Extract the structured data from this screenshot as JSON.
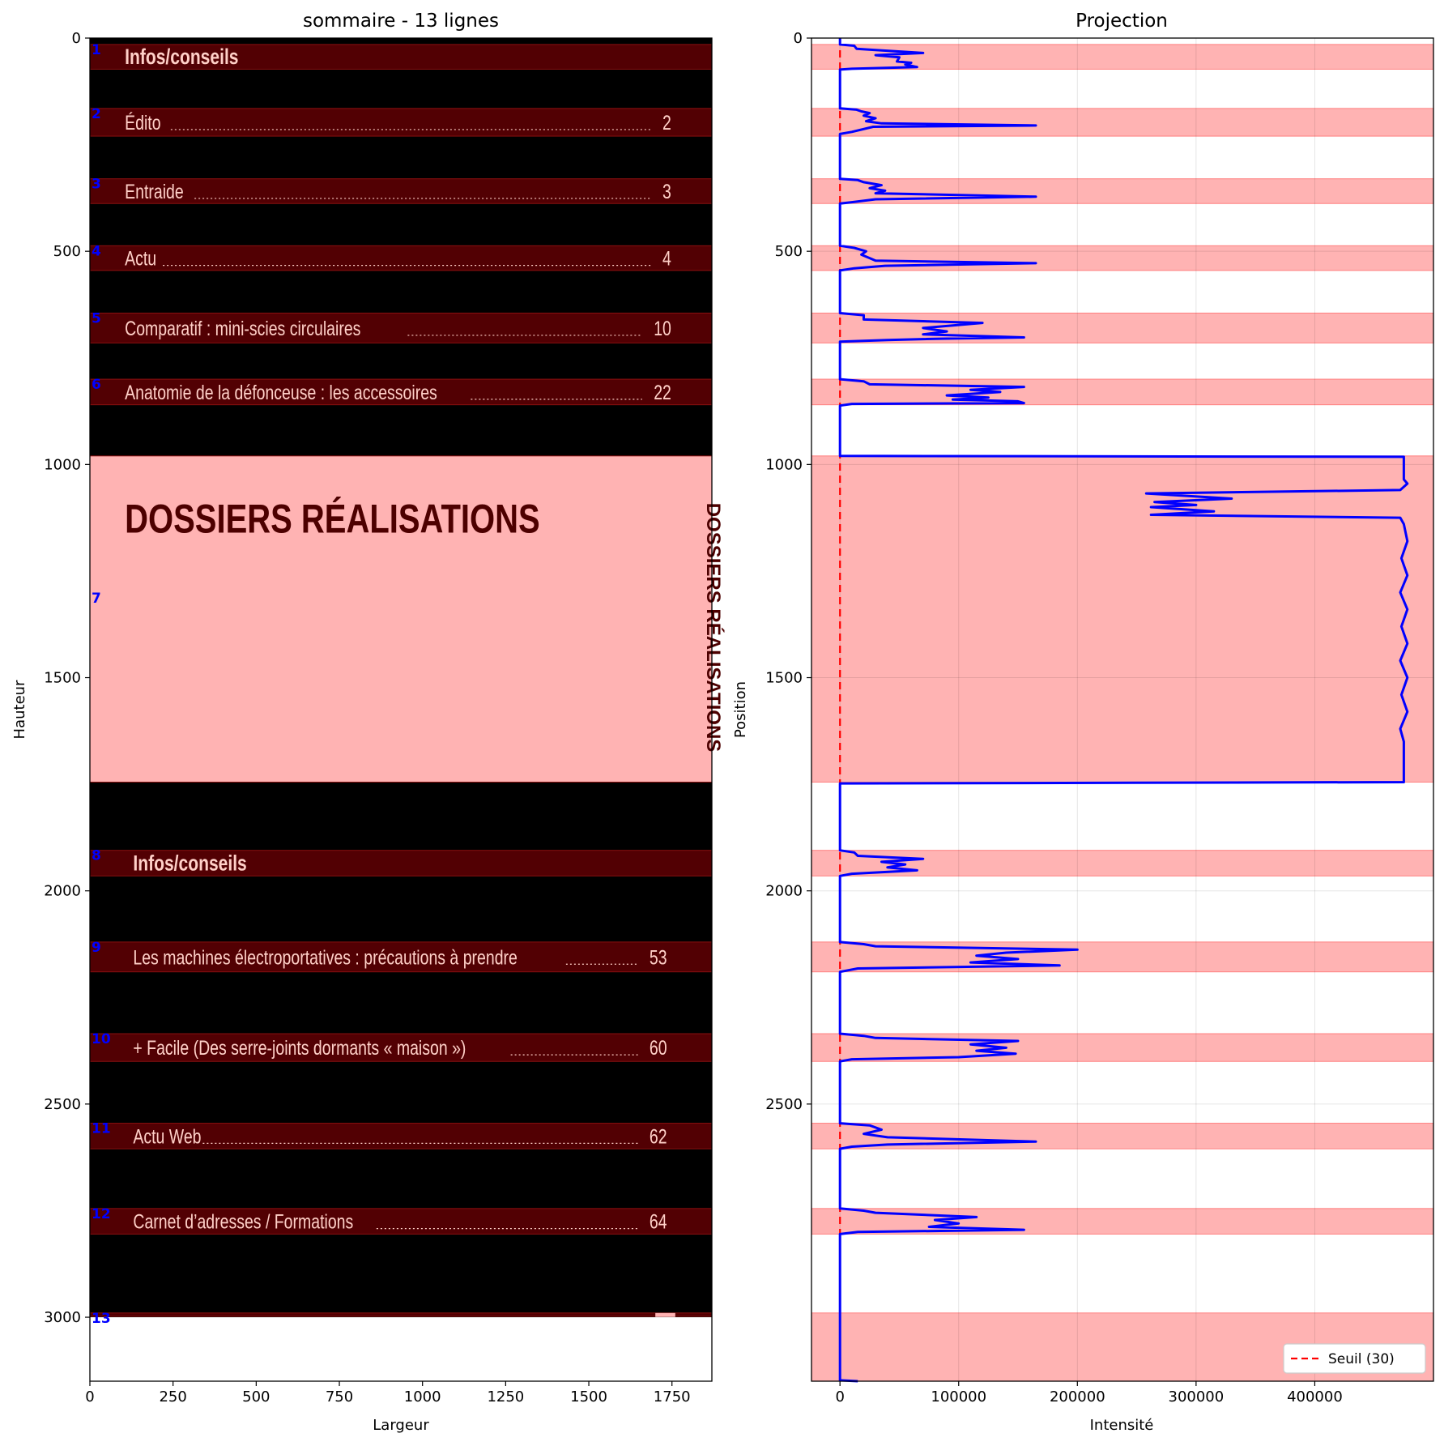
{
  "chart_data": [
    {
      "type": "image",
      "title": "sommaire - 13 lignes",
      "xlabel": "Largeur",
      "ylabel": "Hauteur",
      "xlim": [
        0,
        1870
      ],
      "ylim": [
        3150,
        0
      ],
      "xticks": [
        0,
        250,
        500,
        750,
        1000,
        1250,
        1500,
        1750
      ],
      "yticks": [
        0,
        500,
        1000,
        1500,
        2000,
        2500,
        3000
      ],
      "image_height": 3000,
      "lines": [
        {
          "id": "1",
          "y0": 15,
          "y1": 73
        },
        {
          "id": "2",
          "y0": 165,
          "y1": 230
        },
        {
          "id": "3",
          "y0": 330,
          "y1": 388
        },
        {
          "id": "4",
          "y0": 487,
          "y1": 545
        },
        {
          "id": "5",
          "y0": 645,
          "y1": 715
        },
        {
          "id": "6",
          "y0": 800,
          "y1": 860
        },
        {
          "id": "7",
          "y0": 980,
          "y1": 1745
        },
        {
          "id": "8",
          "y0": 1905,
          "y1": 1965
        },
        {
          "id": "9",
          "y0": 2120,
          "y1": 2190
        },
        {
          "id": "10",
          "y0": 2335,
          "y1": 2400
        },
        {
          "id": "11",
          "y0": 2545,
          "y1": 2605
        },
        {
          "id": "12",
          "y0": 2745,
          "y1": 2805
        },
        {
          "id": "13",
          "y0": 2990,
          "y1": 2998
        }
      ],
      "toc": [
        {
          "text": "Infos/conseils",
          "page": "",
          "header": true,
          "indent": 0
        },
        {
          "text": "Édito",
          "page": "2",
          "indent": 0
        },
        {
          "text": "Entraide",
          "page": "3",
          "indent": 0
        },
        {
          "text": "Actu",
          "page": "4",
          "indent": 0
        },
        {
          "text": "Comparatif : mini-scies circulaires",
          "page": "10",
          "indent": 0
        },
        {
          "text": "Anatomie de la défonceuse : les accessoires",
          "page": "22",
          "indent": 0
        },
        {
          "text": "Infos/conseils",
          "page": "",
          "header": true,
          "indent": 1
        },
        {
          "text": "Les machines électroportatives : précautions à prendre",
          "page": "53",
          "indent": 1
        },
        {
          "text": "+ Facile (Des serre-joints dormants « maison »)",
          "page": "60",
          "indent": 1
        },
        {
          "text": "Actu Web",
          "page": "62",
          "indent": 1
        },
        {
          "text": "Carnet d’adresses / Formations",
          "page": "64",
          "indent": 1
        }
      ],
      "banner_title": "DOSSIERS RÉALISATIONS",
      "banner_side_title": "DOSSIERS RÉALISATIONS"
    },
    {
      "type": "line",
      "title": "Projection",
      "xlabel": "Intensité",
      "ylabel": "Position",
      "xlim": [
        -24000,
        500000
      ],
      "ylim": [
        3150,
        0
      ],
      "xticks": [
        0,
        100000,
        200000,
        300000,
        400000
      ],
      "yticks": [
        0,
        500,
        1000,
        1500,
        2000,
        2500
      ],
      "grid": true,
      "threshold": 30,
      "legend": {
        "label": "Seuil (30)",
        "position": "lower-right"
      },
      "regions": [
        [
          15,
          73
        ],
        [
          165,
          230
        ],
        [
          330,
          388
        ],
        [
          487,
          545
        ],
        [
          645,
          715
        ],
        [
          800,
          860
        ],
        [
          980,
          1745
        ],
        [
          1905,
          1965
        ],
        [
          2120,
          2190
        ],
        [
          2335,
          2400
        ],
        [
          2545,
          2605
        ],
        [
          2745,
          2805
        ],
        [
          2990,
          3150
        ]
      ],
      "series": [
        {
          "color": "#0000ff",
          "points": [
            [
              0,
              0
            ],
            [
              0,
              15
            ],
            [
              12000,
              18
            ],
            [
              14000,
              25
            ],
            [
              30000,
              28
            ],
            [
              70000,
              35
            ],
            [
              30000,
              40
            ],
            [
              50000,
              45
            ],
            [
              48000,
              55
            ],
            [
              60000,
              58
            ],
            [
              55000,
              62
            ],
            [
              65000,
              68
            ],
            [
              10000,
              72
            ],
            [
              0,
              74
            ],
            [
              0,
              160
            ],
            [
              0,
              165
            ],
            [
              14000,
              168
            ],
            [
              18000,
              172
            ],
            [
              25000,
              176
            ],
            [
              20000,
              182
            ],
            [
              30000,
              188
            ],
            [
              22000,
              195
            ],
            [
              35000,
              200
            ],
            [
              165000,
              205
            ],
            [
              28000,
              208
            ],
            [
              10000,
              220
            ],
            [
              0,
              225
            ],
            [
              0,
              310
            ],
            [
              0,
              330
            ],
            [
              15000,
              333
            ],
            [
              20000,
              338
            ],
            [
              35000,
              345
            ],
            [
              25000,
              352
            ],
            [
              38000,
              358
            ],
            [
              30000,
              364
            ],
            [
              165000,
              372
            ],
            [
              30000,
              378
            ],
            [
              10000,
              385
            ],
            [
              0,
              388
            ],
            [
              0,
              480
            ],
            [
              0,
              487
            ],
            [
              12000,
              492
            ],
            [
              22000,
              500
            ],
            [
              18000,
              508
            ],
            [
              25000,
              516
            ],
            [
              30000,
              522
            ],
            [
              165000,
              528
            ],
            [
              38000,
              534
            ],
            [
              12000,
              540
            ],
            [
              0,
              545
            ],
            [
              0,
              640
            ],
            [
              0,
              645
            ],
            [
              20000,
              650
            ],
            [
              20000,
              660
            ],
            [
              120000,
              668
            ],
            [
              70000,
              680
            ],
            [
              90000,
              688
            ],
            [
              70000,
              695
            ],
            [
              155000,
              702
            ],
            [
              85000,
              705
            ],
            [
              40000,
              708
            ],
            [
              0,
              712
            ],
            [
              0,
              795
            ],
            [
              0,
              800
            ],
            [
              20000,
              805
            ],
            [
              25000,
              812
            ],
            [
              155000,
              818
            ],
            [
              110000,
              825
            ],
            [
              135000,
              830
            ],
            [
              90000,
              838
            ],
            [
              125000,
              843
            ],
            [
              95000,
              848
            ],
            [
              150000,
              852
            ],
            [
              155000,
              856
            ],
            [
              10000,
              858
            ],
            [
              0,
              862
            ],
            [
              0,
              975
            ],
            [
              0,
              980
            ],
            [
              475000,
              982
            ],
            [
              475000,
              1035
            ],
            [
              478000,
              1045
            ],
            [
              472000,
              1060
            ],
            [
              258000,
              1068
            ],
            [
              330000,
              1080
            ],
            [
              265000,
              1088
            ],
            [
              300000,
              1095
            ],
            [
              262000,
              1100
            ],
            [
              315000,
              1110
            ],
            [
              262000,
              1118
            ],
            [
              472000,
              1125
            ],
            [
              475000,
              1140
            ],
            [
              478000,
              1180
            ],
            [
              473000,
              1220
            ],
            [
              478000,
              1260
            ],
            [
              472000,
              1300
            ],
            [
              478000,
              1340
            ],
            [
              473000,
              1380
            ],
            [
              478000,
              1420
            ],
            [
              472000,
              1460
            ],
            [
              478000,
              1500
            ],
            [
              473000,
              1540
            ],
            [
              478000,
              1580
            ],
            [
              472000,
              1620
            ],
            [
              475000,
              1650
            ],
            [
              475000,
              1745
            ],
            [
              0,
              1748
            ],
            [
              0,
              1900
            ],
            [
              0,
              1905
            ],
            [
              12000,
              1910
            ],
            [
              15000,
              1918
            ],
            [
              70000,
              1925
            ],
            [
              35000,
              1932
            ],
            [
              55000,
              1938
            ],
            [
              40000,
              1945
            ],
            [
              65000,
              1952
            ],
            [
              10000,
              1960
            ],
            [
              0,
              1965
            ],
            [
              0,
              2115
            ],
            [
              0,
              2120
            ],
            [
              20000,
              2125
            ],
            [
              30000,
              2130
            ],
            [
              200000,
              2138
            ],
            [
              140000,
              2145
            ],
            [
              115000,
              2152
            ],
            [
              150000,
              2160
            ],
            [
              110000,
              2168
            ],
            [
              185000,
              2175
            ],
            [
              15000,
              2182
            ],
            [
              0,
              2190
            ],
            [
              0,
              2330
            ],
            [
              0,
              2335
            ],
            [
              20000,
              2340
            ],
            [
              30000,
              2345
            ],
            [
              150000,
              2352
            ],
            [
              110000,
              2360
            ],
            [
              140000,
              2368
            ],
            [
              115000,
              2375
            ],
            [
              148000,
              2382
            ],
            [
              100000,
              2390
            ],
            [
              10000,
              2395
            ],
            [
              0,
              2400
            ],
            [
              0,
              2540
            ],
            [
              0,
              2545
            ],
            [
              25000,
              2550
            ],
            [
              35000,
              2560
            ],
            [
              20000,
              2570
            ],
            [
              40000,
              2578
            ],
            [
              165000,
              2588
            ],
            [
              40000,
              2595
            ],
            [
              10000,
              2600
            ],
            [
              0,
              2605
            ],
            [
              0,
              2740
            ],
            [
              0,
              2745
            ],
            [
              20000,
              2750
            ],
            [
              30000,
              2755
            ],
            [
              115000,
              2765
            ],
            [
              80000,
              2772
            ],
            [
              100000,
              2780
            ],
            [
              75000,
              2788
            ],
            [
              155000,
              2795
            ],
            [
              15000,
              2800
            ],
            [
              0,
              2805
            ],
            [
              0,
              3140
            ],
            [
              0,
              3148
            ],
            [
              15000,
              3150
            ]
          ]
        }
      ]
    }
  ]
}
